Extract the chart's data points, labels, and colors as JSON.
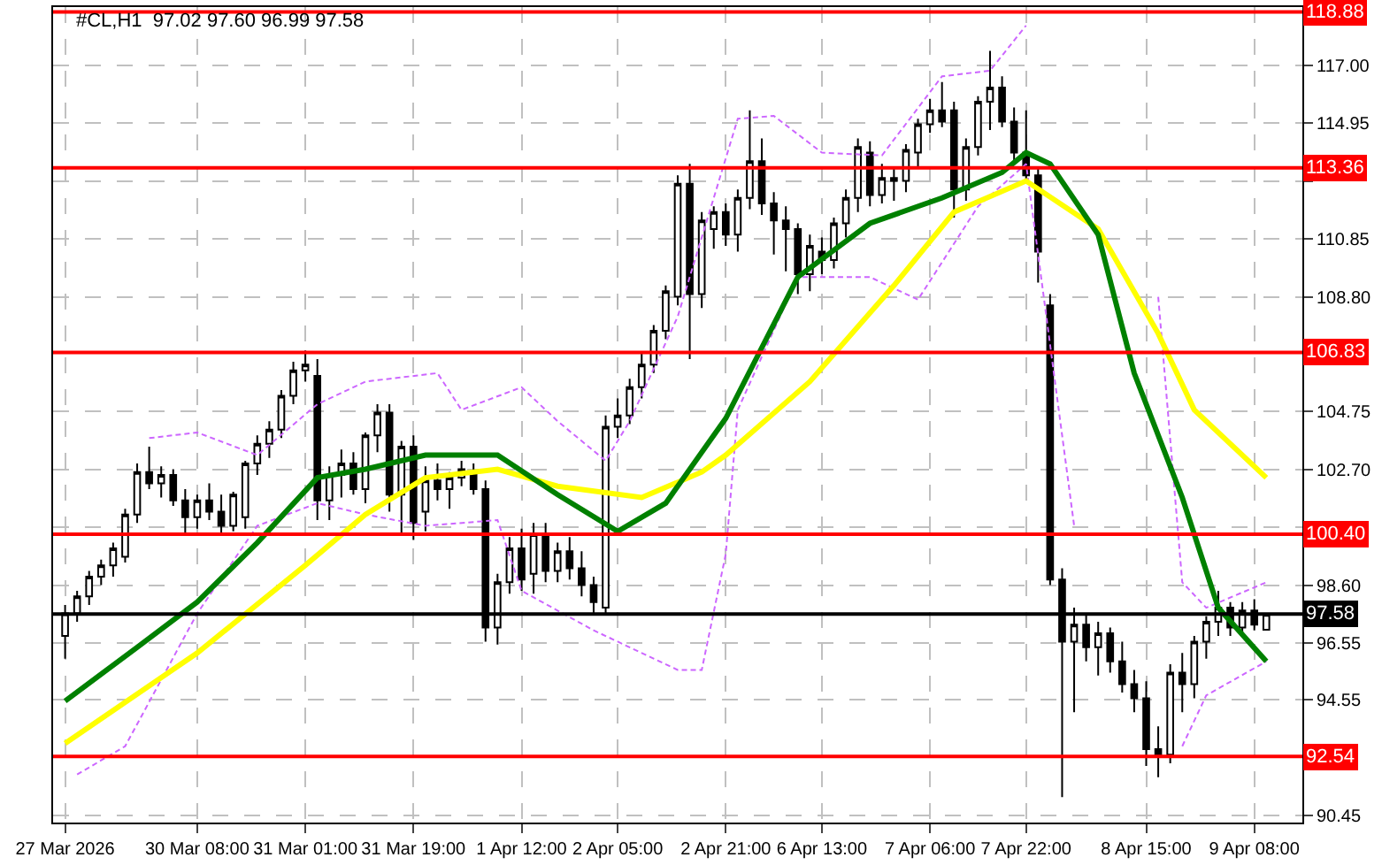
{
  "chart_data": {
    "type": "candlestick",
    "title": "#CL,H1  97.02 97.60 96.99 97.58",
    "color": "#000000",
    "categories": [
      "27 Mar 2026",
      null,
      null,
      null,
      null,
      null,
      null,
      null,
      null,
      null,
      null,
      "30 Mar 08:00",
      null,
      null,
      null,
      null,
      null,
      null,
      null,
      null,
      "31 Mar 01:00",
      null,
      null,
      null,
      null,
      null,
      null,
      null,
      null,
      "31 Mar 19:00",
      null,
      null,
      null,
      null,
      null,
      null,
      null,
      null,
      "1 Apr 12:00",
      null,
      null,
      null,
      null,
      null,
      null,
      null,
      "2 Apr 05:00",
      null,
      null,
      null,
      null,
      null,
      null,
      null,
      null,
      "2 Apr 21:00",
      null,
      null,
      null,
      null,
      null,
      null,
      null,
      "6 Apr 13:00",
      null,
      null,
      null,
      null,
      null,
      null,
      null,
      null,
      "7 Apr 06:00",
      null,
      null,
      null,
      null,
      null,
      null,
      null,
      "7 Apr 22:00",
      null,
      null,
      null,
      null,
      null,
      null,
      null,
      null,
      null,
      "8 Apr 15:00",
      null,
      null,
      null,
      null,
      null,
      null,
      null,
      null,
      "9 Apr 08:00",
      null
    ],
    "ohlc": [
      [
        96.8,
        97.9,
        96.0,
        97.6
      ],
      [
        97.6,
        98.4,
        97.3,
        98.2
      ],
      [
        98.2,
        99.1,
        97.9,
        98.9
      ],
      [
        98.9,
        99.5,
        98.6,
        99.3
      ],
      [
        99.3,
        100.1,
        98.9,
        99.9
      ],
      [
        99.6,
        101.3,
        99.4,
        101.1
      ],
      [
        101.1,
        102.9,
        100.8,
        102.6
      ],
      [
        102.6,
        103.5,
        102.0,
        102.2
      ],
      [
        102.2,
        102.8,
        101.7,
        102.5
      ],
      [
        102.5,
        102.7,
        101.4,
        101.6
      ],
      [
        101.6,
        102.0,
        100.4,
        101.0
      ],
      [
        101.0,
        101.8,
        100.6,
        101.6
      ],
      [
        101.6,
        102.2,
        100.9,
        101.2
      ],
      [
        101.2,
        101.8,
        100.4,
        100.7
      ],
      [
        100.7,
        101.9,
        100.5,
        101.8
      ],
      [
        101.0,
        103.0,
        100.6,
        102.9
      ],
      [
        102.9,
        103.9,
        102.5,
        103.6
      ],
      [
        103.6,
        104.4,
        103.1,
        104.1
      ],
      [
        104.1,
        105.5,
        103.8,
        105.3
      ],
      [
        105.3,
        106.5,
        105.0,
        106.2
      ],
      [
        106.2,
        106.9,
        105.8,
        106.4
      ],
      [
        106.0,
        106.6,
        100.9,
        101.6
      ],
      [
        101.6,
        102.8,
        100.9,
        102.5
      ],
      [
        102.5,
        103.4,
        101.7,
        102.9
      ],
      [
        102.9,
        103.3,
        101.8,
        102.0
      ],
      [
        102.0,
        104.0,
        101.5,
        103.9
      ],
      [
        103.9,
        105.0,
        103.3,
        104.7
      ],
      [
        104.7,
        105.0,
        101.2,
        101.8
      ],
      [
        101.8,
        103.7,
        100.4,
        103.5
      ],
      [
        103.5,
        103.9,
        100.2,
        100.8
      ],
      [
        101.2,
        102.8,
        100.5,
        102.3
      ],
      [
        102.3,
        102.9,
        101.6,
        102.0
      ],
      [
        102.0,
        102.6,
        101.3,
        102.4
      ],
      [
        102.4,
        103.0,
        102.1,
        102.7
      ],
      [
        102.6,
        102.9,
        101.8,
        102.0
      ],
      [
        102.0,
        102.3,
        96.6,
        97.1
      ],
      [
        97.1,
        99.0,
        96.5,
        98.7
      ],
      [
        98.7,
        100.3,
        98.3,
        99.9
      ],
      [
        99.9,
        100.6,
        98.4,
        98.8
      ],
      [
        99.0,
        100.8,
        98.3,
        100.4
      ],
      [
        100.4,
        100.8,
        98.7,
        99.1
      ],
      [
        99.1,
        100.1,
        98.7,
        99.8
      ],
      [
        99.8,
        100.3,
        98.8,
        99.2
      ],
      [
        99.2,
        99.8,
        98.2,
        98.6
      ],
      [
        98.6,
        98.9,
        97.6,
        98.0
      ],
      [
        97.8,
        104.6,
        97.6,
        104.2
      ],
      [
        104.2,
        105.2,
        103.8,
        104.6
      ],
      [
        104.6,
        105.9,
        104.3,
        105.6
      ],
      [
        105.6,
        106.8,
        105.2,
        106.4
      ],
      [
        106.4,
        107.8,
        106.1,
        107.6
      ],
      [
        107.6,
        109.2,
        107.3,
        109.0
      ],
      [
        108.8,
        113.1,
        108.5,
        112.8
      ],
      [
        112.8,
        113.5,
        106.6,
        108.9
      ],
      [
        108.9,
        111.8,
        108.4,
        111.5
      ],
      [
        111.2,
        112.0,
        110.5,
        111.8
      ],
      [
        111.8,
        112.1,
        110.6,
        111.0
      ],
      [
        111.0,
        112.6,
        110.4,
        112.3
      ],
      [
        112.3,
        115.4,
        111.9,
        113.6
      ],
      [
        113.6,
        114.4,
        111.7,
        112.1
      ],
      [
        112.1,
        112.5,
        110.3,
        111.5
      ],
      [
        111.5,
        112.0,
        109.7,
        111.2
      ],
      [
        111.2,
        111.4,
        108.9,
        109.6
      ],
      [
        109.6,
        111.0,
        109.0,
        110.6
      ],
      [
        110.4,
        110.9,
        109.6,
        110.1
      ],
      [
        110.1,
        111.6,
        109.8,
        111.4
      ],
      [
        111.4,
        112.6,
        110.9,
        112.3
      ],
      [
        112.3,
        114.4,
        111.8,
        114.1
      ],
      [
        113.9,
        114.3,
        112.0,
        112.4
      ],
      [
        112.4,
        113.5,
        112.1,
        113.0
      ],
      [
        113.0,
        113.4,
        112.2,
        112.9
      ],
      [
        112.9,
        114.2,
        112.5,
        114.0
      ],
      [
        113.9,
        115.1,
        113.4,
        114.9
      ],
      [
        114.9,
        115.8,
        114.6,
        115.4
      ],
      [
        115.4,
        116.4,
        114.8,
        115.0
      ],
      [
        115.4,
        115.7,
        111.6,
        112.6
      ],
      [
        112.6,
        114.4,
        112.2,
        114.1
      ],
      [
        114.1,
        115.9,
        113.8,
        115.7
      ],
      [
        115.7,
        117.5,
        114.7,
        116.2
      ],
      [
        116.2,
        116.6,
        114.8,
        115.0
      ],
      [
        115.0,
        115.5,
        113.6,
        113.9
      ],
      [
        113.9,
        115.4,
        112.9,
        113.1
      ],
      [
        113.1,
        113.4,
        109.3,
        110.4
      ],
      [
        108.5,
        108.9,
        98.6,
        98.8
      ],
      [
        98.8,
        99.2,
        91.1,
        96.6
      ],
      [
        96.6,
        97.8,
        94.1,
        97.2
      ],
      [
        97.2,
        97.6,
        95.9,
        96.4
      ],
      [
        96.4,
        97.3,
        95.4,
        96.9
      ],
      [
        96.9,
        97.1,
        95.5,
        95.9
      ],
      [
        95.9,
        96.6,
        94.8,
        95.1
      ],
      [
        95.1,
        95.6,
        94.1,
        94.6
      ],
      [
        94.6,
        95.2,
        92.2,
        92.8
      ],
      [
        92.8,
        93.6,
        91.8,
        92.6
      ],
      [
        92.6,
        95.8,
        92.3,
        95.5
      ],
      [
        95.5,
        96.2,
        94.1,
        95.1
      ],
      [
        95.1,
        96.8,
        94.6,
        96.6
      ],
      [
        96.6,
        97.5,
        96.0,
        97.3
      ],
      [
        97.3,
        98.4,
        96.8,
        97.8
      ],
      [
        97.8,
        98.0,
        96.8,
        97.1
      ],
      [
        97.1,
        98.0,
        96.9,
        97.7
      ],
      [
        97.7,
        98.1,
        97.0,
        97.2
      ],
      [
        97.02,
        97.6,
        96.99,
        97.58
      ]
    ],
    "series": [
      {
        "type": "line",
        "color": "#cc66ff",
        "line_style": "dashed",
        "values": [
          null,
          null,
          null,
          null,
          null,
          null,
          null,
          103.8,
          null,
          null,
          null,
          104.0,
          null,
          null,
          null,
          null,
          103.2,
          null,
          null,
          null,
          null,
          105.0,
          null,
          null,
          null,
          105.8,
          null,
          null,
          null,
          null,
          null,
          106.1,
          null,
          104.8,
          null,
          null,
          null,
          null,
          105.6,
          null,
          null,
          104.4,
          null,
          null,
          null,
          103.0,
          null,
          104.4,
          null,
          null,
          null,
          108.1,
          null,
          null,
          null,
          null,
          115.1,
          null,
          null,
          115.2,
          null,
          null,
          null,
          113.9,
          null,
          null,
          null,
          null,
          113.8,
          null,
          null,
          null,
          null,
          116.6,
          null,
          null,
          null,
          116.8,
          null,
          null,
          118.4,
          null,
          null,
          null,
          null,
          null,
          null,
          null,
          null,
          null,
          null,
          null,
          null,
          null,
          null,
          null,
          null,
          null,
          null,
          null,
          null
        ]
      },
      {
        "type": "line",
        "color": "#cc66ff",
        "line_style": "dashed",
        "values": [
          null,
          null,
          null,
          null,
          null,
          null,
          null,
          null,
          null,
          null,
          null,
          null,
          null,
          null,
          null,
          null,
          null,
          null,
          null,
          null,
          null,
          null,
          null,
          null,
          null,
          null,
          null,
          null,
          null,
          null,
          null,
          null,
          null,
          null,
          null,
          null,
          null,
          null,
          null,
          null,
          null,
          null,
          null,
          null,
          null,
          null,
          null,
          null,
          null,
          null,
          null,
          null,
          null,
          null,
          null,
          null,
          null,
          null,
          null,
          null,
          null,
          null,
          null,
          null,
          null,
          null,
          null,
          null,
          null,
          null,
          null,
          null,
          null,
          null,
          null,
          null,
          null,
          null,
          null,
          null,
          null,
          null,
          null,
          null,
          null,
          null,
          null,
          null,
          null,
          null,
          null,
          108.8,
          null,
          98.7,
          null,
          97.8,
          null,
          null,
          null,
          null,
          98.7
        ]
      },
      {
        "type": "line",
        "color": "#cc66ff",
        "line_style": "dashed",
        "values": [
          null,
          91.9,
          null,
          null,
          null,
          92.9,
          null,
          null,
          null,
          null,
          null,
          97.6,
          null,
          null,
          null,
          null,
          100.7,
          null,
          null,
          null,
          null,
          101.5,
          null,
          null,
          null,
          101.1,
          null,
          null,
          null,
          null,
          100.7,
          null,
          null,
          null,
          null,
          null,
          100.9,
          null,
          98.4,
          null,
          null,
          null,
          null,
          null,
          97.0,
          null,
          96.6,
          null,
          null,
          null,
          null,
          95.6,
          null,
          95.6,
          null,
          99.7,
          104.8,
          null,
          null,
          null,
          null,
          109.5,
          null,
          null,
          null,
          null,
          null,
          109.5,
          null,
          null,
          null,
          108.7,
          null,
          null,
          null,
          null,
          112.0,
          null,
          null,
          null,
          113.5,
          null,
          null,
          null,
          100.7,
          null,
          null,
          null,
          null,
          null,
          null,
          null,
          null,
          null,
          null,
          null,
          null,
          null,
          null,
          null,
          null
        ]
      },
      {
        "type": "line",
        "color": "#cc66ff",
        "line_style": "dashed",
        "values": [
          null,
          null,
          null,
          null,
          null,
          null,
          null,
          null,
          null,
          null,
          null,
          null,
          null,
          null,
          null,
          null,
          null,
          null,
          null,
          null,
          null,
          null,
          null,
          null,
          null,
          null,
          null,
          null,
          null,
          null,
          null,
          null,
          null,
          null,
          null,
          null,
          null,
          null,
          null,
          null,
          null,
          null,
          null,
          null,
          null,
          null,
          null,
          null,
          null,
          null,
          null,
          null,
          null,
          null,
          null,
          null,
          null,
          null,
          null,
          null,
          null,
          null,
          null,
          null,
          null,
          null,
          null,
          null,
          null,
          null,
          null,
          null,
          null,
          null,
          null,
          null,
          null,
          null,
          null,
          null,
          null,
          null,
          null,
          null,
          null,
          null,
          null,
          null,
          null,
          null,
          null,
          null,
          null,
          92.9,
          null,
          94.7,
          null,
          null,
          null,
          null,
          95.9
        ]
      },
      {
        "type": "line",
        "color": "#ffff00",
        "line_style": "solid",
        "values": [
          93.0,
          null,
          null,
          null,
          null,
          null,
          null,
          null,
          null,
          null,
          null,
          96.2,
          null,
          null,
          null,
          null,
          null,
          null,
          null,
          null,
          99.3,
          null,
          null,
          null,
          null,
          101.1,
          null,
          null,
          null,
          null,
          102.4,
          null,
          null,
          null,
          null,
          null,
          102.7,
          null,
          null,
          null,
          null,
          102.1,
          null,
          null,
          null,
          null,
          null,
          null,
          101.7,
          null,
          null,
          null,
          null,
          102.6,
          null,
          103.2,
          null,
          null,
          null,
          null,
          null,
          null,
          105.8,
          null,
          null,
          null,
          null,
          null,
          null,
          109.2,
          null,
          null,
          null,
          null,
          111.8,
          null,
          null,
          null,
          null,
          null,
          112.9,
          null,
          null,
          null,
          null,
          null,
          111.2,
          null,
          null,
          null,
          null,
          107.5,
          null,
          null,
          104.8,
          null,
          null,
          null,
          null,
          null,
          102.4
        ]
      },
      {
        "type": "line",
        "color": "#008000",
        "line_style": "solid",
        "values": [
          94.5,
          null,
          null,
          null,
          null,
          null,
          96.4,
          null,
          null,
          null,
          null,
          98.0,
          null,
          null,
          null,
          null,
          100.1,
          null,
          null,
          null,
          null,
          102.4,
          null,
          null,
          null,
          102.7,
          null,
          null,
          null,
          null,
          103.2,
          null,
          null,
          null,
          null,
          null,
          103.2,
          null,
          null,
          null,
          null,
          101.8,
          null,
          null,
          null,
          null,
          100.5,
          null,
          null,
          null,
          101.5,
          null,
          null,
          null,
          null,
          104.5,
          null,
          null,
          null,
          null,
          null,
          109.5,
          null,
          null,
          null,
          null,
          null,
          111.4,
          null,
          null,
          null,
          null,
          null,
          112.3,
          null,
          null,
          null,
          null,
          113.2,
          null,
          113.9,
          null,
          113.5,
          null,
          null,
          null,
          111.0,
          null,
          null,
          106.1,
          null,
          null,
          null,
          101.7,
          null,
          null,
          97.8,
          null,
          null,
          null,
          95.9
        ]
      }
    ],
    "ref_lines": [
      {
        "axis": "y",
        "value": 118.88,
        "label": "118.88",
        "color": "#ff0000"
      },
      {
        "axis": "y",
        "value": 113.36,
        "label": "113.36",
        "color": "#ff0000"
      },
      {
        "axis": "y",
        "value": 106.83,
        "label": "106.83",
        "color": "#ff0000"
      },
      {
        "axis": "y",
        "value": 100.4,
        "label": "100.40",
        "color": "#ff0000"
      },
      {
        "axis": "y",
        "value": 92.54,
        "label": "92.54",
        "color": "#ff0000"
      },
      {
        "axis": "y",
        "value": 97.58,
        "label": "97.58",
        "color": "#000000"
      }
    ],
    "ylim": [
      90.2,
      119.05
    ],
    "yticks": [
      {
        "value": 90.45,
        "label": "90.45"
      },
      {
        "value": 94.55,
        "label": "94.55"
      },
      {
        "value": 96.55,
        "label": "96.55"
      },
      {
        "value": 98.6,
        "label": "98.60"
      },
      {
        "value": 100.65,
        "label": null
      },
      {
        "value": 102.7,
        "label": "102.70"
      },
      {
        "value": 104.75,
        "label": "104.75"
      },
      {
        "value": 108.8,
        "label": "108.80"
      },
      {
        "value": 110.85,
        "label": "110.85"
      },
      {
        "value": 112.9,
        "label": null
      },
      {
        "value": 114.95,
        "label": "114.95"
      },
      {
        "value": 117.0,
        "label": "117.00"
      }
    ],
    "grid": true
  }
}
